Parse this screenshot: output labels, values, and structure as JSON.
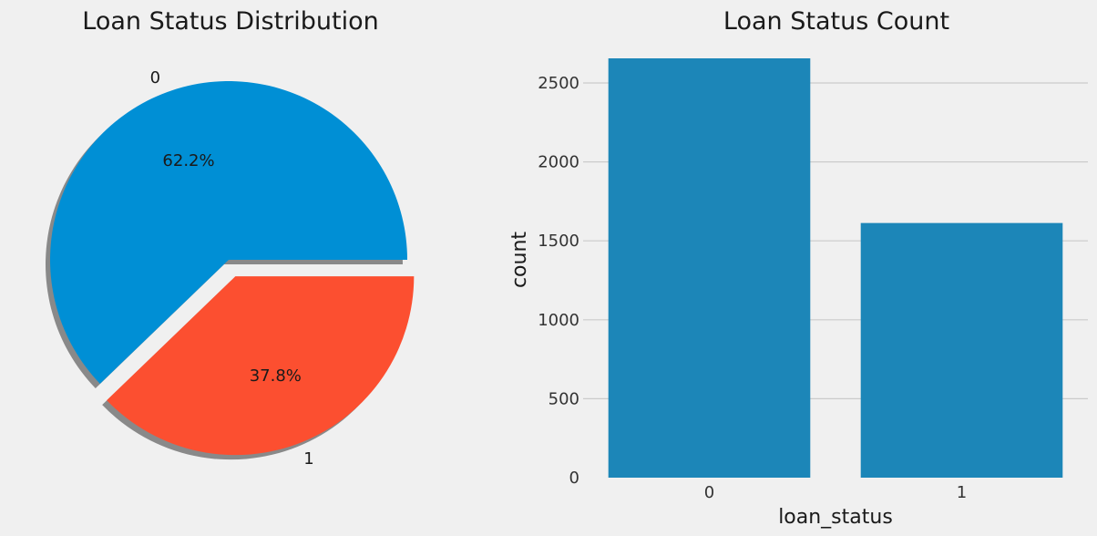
{
  "pie_chart": {
    "title": "Loan Status Distribution"
  },
  "bar_chart": {
    "title": "Loan Status Count",
    "xlabel": "loan_status",
    "ylabel": "count"
  },
  "chart_data": [
    {
      "type": "pie",
      "title": "Loan Status Distribution",
      "labels": [
        "0",
        "1"
      ],
      "values": [
        62.2,
        37.8
      ],
      "value_labels": [
        "62.2%",
        "37.8%"
      ],
      "explode": [
        0,
        0.1
      ],
      "shadow": true,
      "colors": [
        "#008fd5",
        "#fc4f30"
      ]
    },
    {
      "type": "bar",
      "title": "Loan Status Count",
      "categories": [
        "0",
        "1"
      ],
      "values": [
        2656,
        1613
      ],
      "xlabel": "loan_status",
      "ylabel": "count",
      "ylim": [
        0,
        2656
      ],
      "yticks": [
        0,
        500,
        1000,
        1500,
        2000,
        2500
      ],
      "grid": true,
      "color": "#1c86b8"
    }
  ]
}
